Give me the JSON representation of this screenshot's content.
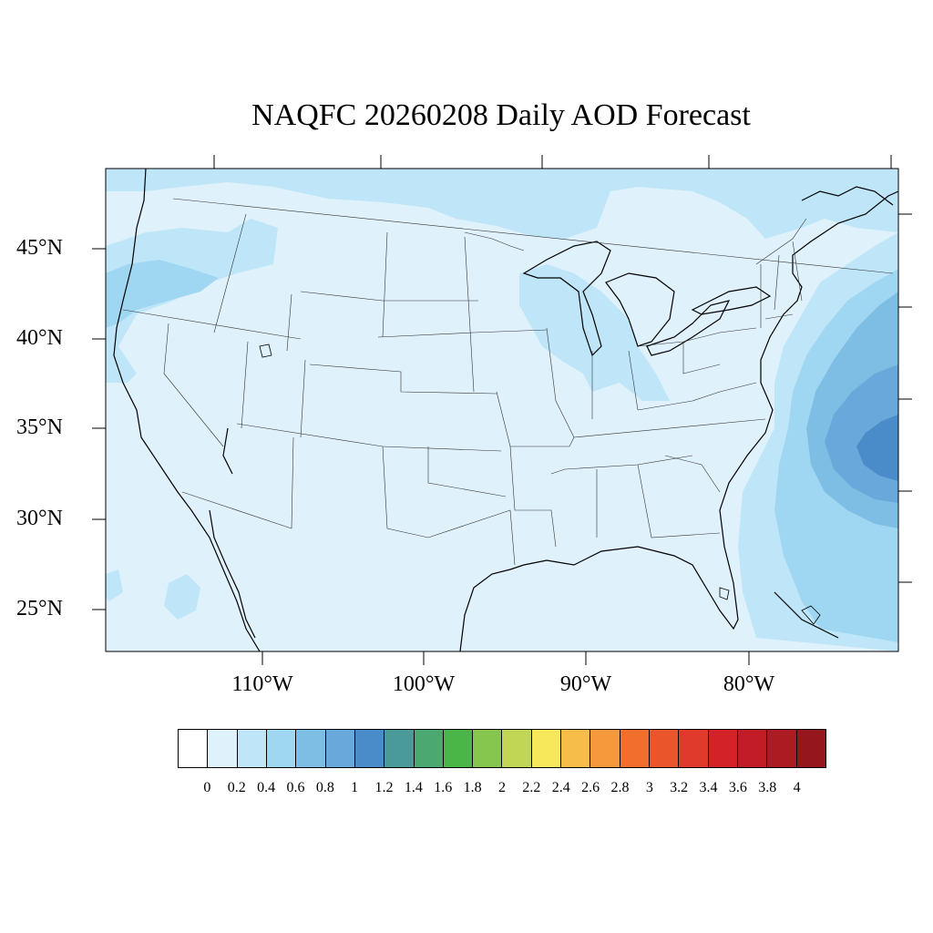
{
  "title": "NAQFC 20260208 Daily AOD Forecast",
  "lat_labels": [
    "45°N",
    "40°N",
    "35°N",
    "30°N",
    "25°N"
  ],
  "lon_labels": [
    "110°W",
    "100°W",
    "90°W",
    "80°W"
  ],
  "colorbar": {
    "colors": [
      "#ffffff",
      "#dff1fb",
      "#bfe6f8",
      "#9fd7f2",
      "#7fbee4",
      "#68a8db",
      "#4a8bc9",
      "#4a9a9a",
      "#4aa870",
      "#4ab648",
      "#86c54e",
      "#c2d655",
      "#f7e75a",
      "#f6be48",
      "#f5993c",
      "#f26e2c",
      "#ea552b",
      "#e03a2c",
      "#d42229",
      "#c21c26",
      "#ac1b22",
      "#95161c"
    ],
    "tick_labels": [
      "0",
      "0.2",
      "0.4",
      "0.6",
      "0.8",
      "1",
      "1.2",
      "1.4",
      "1.6",
      "1.8",
      "2",
      "2.2",
      "2.4",
      "2.6",
      "2.8",
      "3",
      "3.2",
      "3.4",
      "3.6",
      "3.8",
      "4"
    ]
  },
  "colors": {
    "background": "#dff1fb",
    "level_02": "#bfe6f8",
    "level_04": "#9fd7f2",
    "level_06": "#7fbee4",
    "level_08": "#68a8db",
    "level_10": "#4a8bc9"
  }
}
